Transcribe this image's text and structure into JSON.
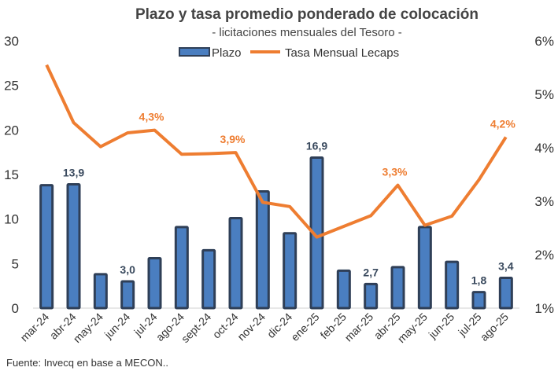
{
  "chart_data": {
    "type": "bar+line",
    "title": "Plazo y tasa promedio ponderado de colocación",
    "subtitle": "- licitaciones mensuales del Tesoro -",
    "categories": [
      "mar-24",
      "abr-24",
      "may-24",
      "jun-24",
      "jul-24",
      "ago-24",
      "sept-24",
      "oct-24",
      "nov-24",
      "dic-24",
      "ene-25",
      "feb-25",
      "mar-25",
      "abr-25",
      "may-25",
      "jun-25",
      "jul-25",
      "ago-25"
    ],
    "series": [
      {
        "name": "Plazo",
        "type": "bar",
        "axis": "left",
        "color": "#4a7ec0",
        "border": "#2f3f57",
        "values": [
          13.8,
          13.9,
          3.8,
          3.0,
          5.6,
          9.1,
          6.5,
          10.1,
          13.1,
          8.4,
          16.9,
          4.2,
          2.7,
          4.6,
          9.1,
          5.2,
          1.8,
          3.4
        ]
      },
      {
        "name": "Tasa Mensual Lecaps",
        "type": "line",
        "axis": "right",
        "color": "#ee7d31",
        "values": [
          5.55,
          4.47,
          4.02,
          4.28,
          4.33,
          3.88,
          3.89,
          3.91,
          2.98,
          2.9,
          2.33,
          2.53,
          2.73,
          3.3,
          2.55,
          2.72,
          3.4,
          4.2
        ]
      }
    ],
    "y_left": {
      "min": 0,
      "max": 30,
      "ticks": [
        "0",
        "5",
        "10",
        "15",
        "20",
        "25",
        "30"
      ]
    },
    "y_right": {
      "min": 1,
      "max": 6,
      "ticks": [
        "1%",
        "2%",
        "3%",
        "4%",
        "5%",
        "6%"
      ]
    },
    "bar_labels": [
      {
        "index": 1,
        "text": "13,9"
      },
      {
        "index": 3,
        "text": "3,0"
      },
      {
        "index": 10,
        "text": "16,9"
      },
      {
        "index": 12,
        "text": "2,7"
      },
      {
        "index": 16,
        "text": "1,8"
      },
      {
        "index": 17,
        "text": "3,4"
      }
    ],
    "rate_labels": [
      {
        "index": 4,
        "text": "4,3%"
      },
      {
        "index": 7,
        "text": "3,9%"
      },
      {
        "index": 13,
        "text": "3,3%"
      },
      {
        "index": 17,
        "text": "4,2%"
      }
    ],
    "legend": [
      "Plazo",
      "Tasa Mensual Lecaps"
    ],
    "legend_position": "top",
    "source": "Fuente: Invecq en base a MECON.."
  }
}
